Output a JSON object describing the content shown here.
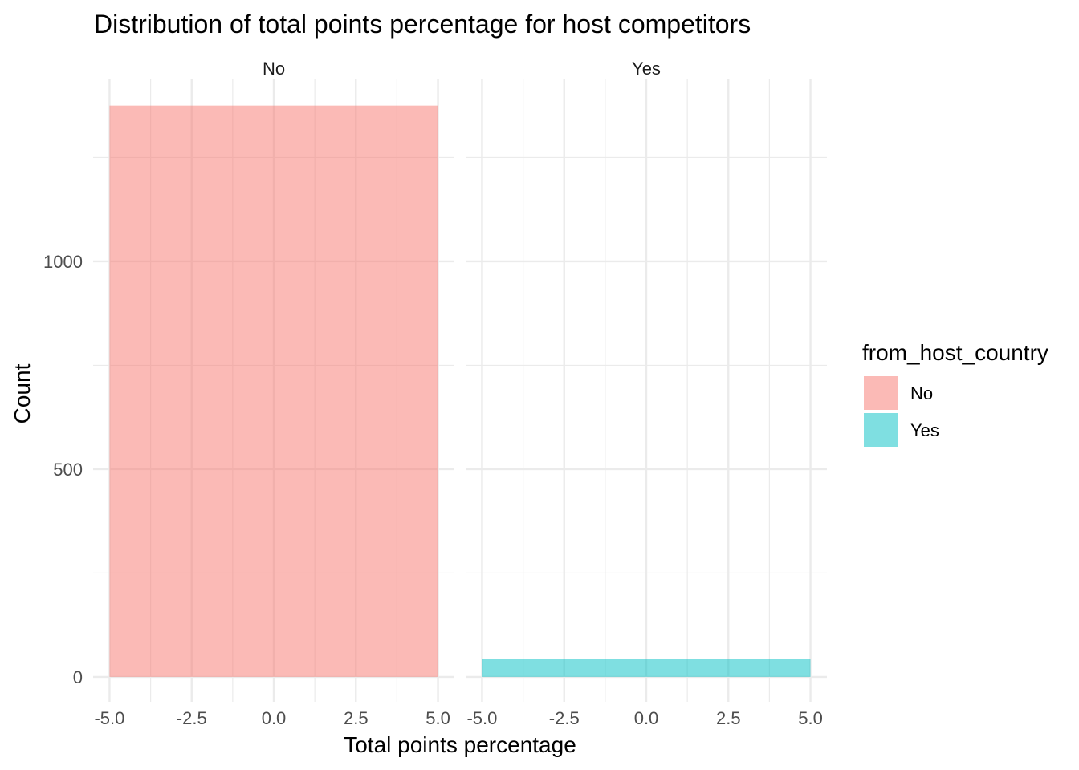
{
  "chart_data": {
    "type": "bar",
    "title": "Distribution of total points percentage for host competitors",
    "xlabel": "Total points percentage",
    "ylabel": "Count",
    "x_ticks": [
      -5.0,
      -2.5,
      0.0,
      2.5,
      5.0
    ],
    "x_tick_labels": [
      "-5.0",
      "-2.5",
      "0.0",
      "2.5",
      "5.0"
    ],
    "y_ticks": [
      0,
      500,
      1000
    ],
    "y_tick_labels": [
      "0",
      "500",
      "1000"
    ],
    "xlim": [
      -5.5,
      5.5
    ],
    "ylim": [
      -60,
      1440
    ],
    "grid": true,
    "legend": {
      "title": "from_host_country",
      "position": "right",
      "entries": [
        {
          "label": "No",
          "color": "#F8766D"
        },
        {
          "label": "Yes",
          "color": "#00BFC4"
        }
      ]
    },
    "facets": [
      {
        "label": "No",
        "bars": [
          {
            "x_start": -5.0,
            "x_end": 5.0,
            "count": 1375,
            "fill": "#F8766D"
          }
        ]
      },
      {
        "label": "Yes",
        "bars": [
          {
            "x_start": -5.0,
            "x_end": 5.0,
            "count": 43,
            "fill": "#00BFC4"
          }
        ]
      }
    ],
    "bar_alpha": 0.5
  }
}
